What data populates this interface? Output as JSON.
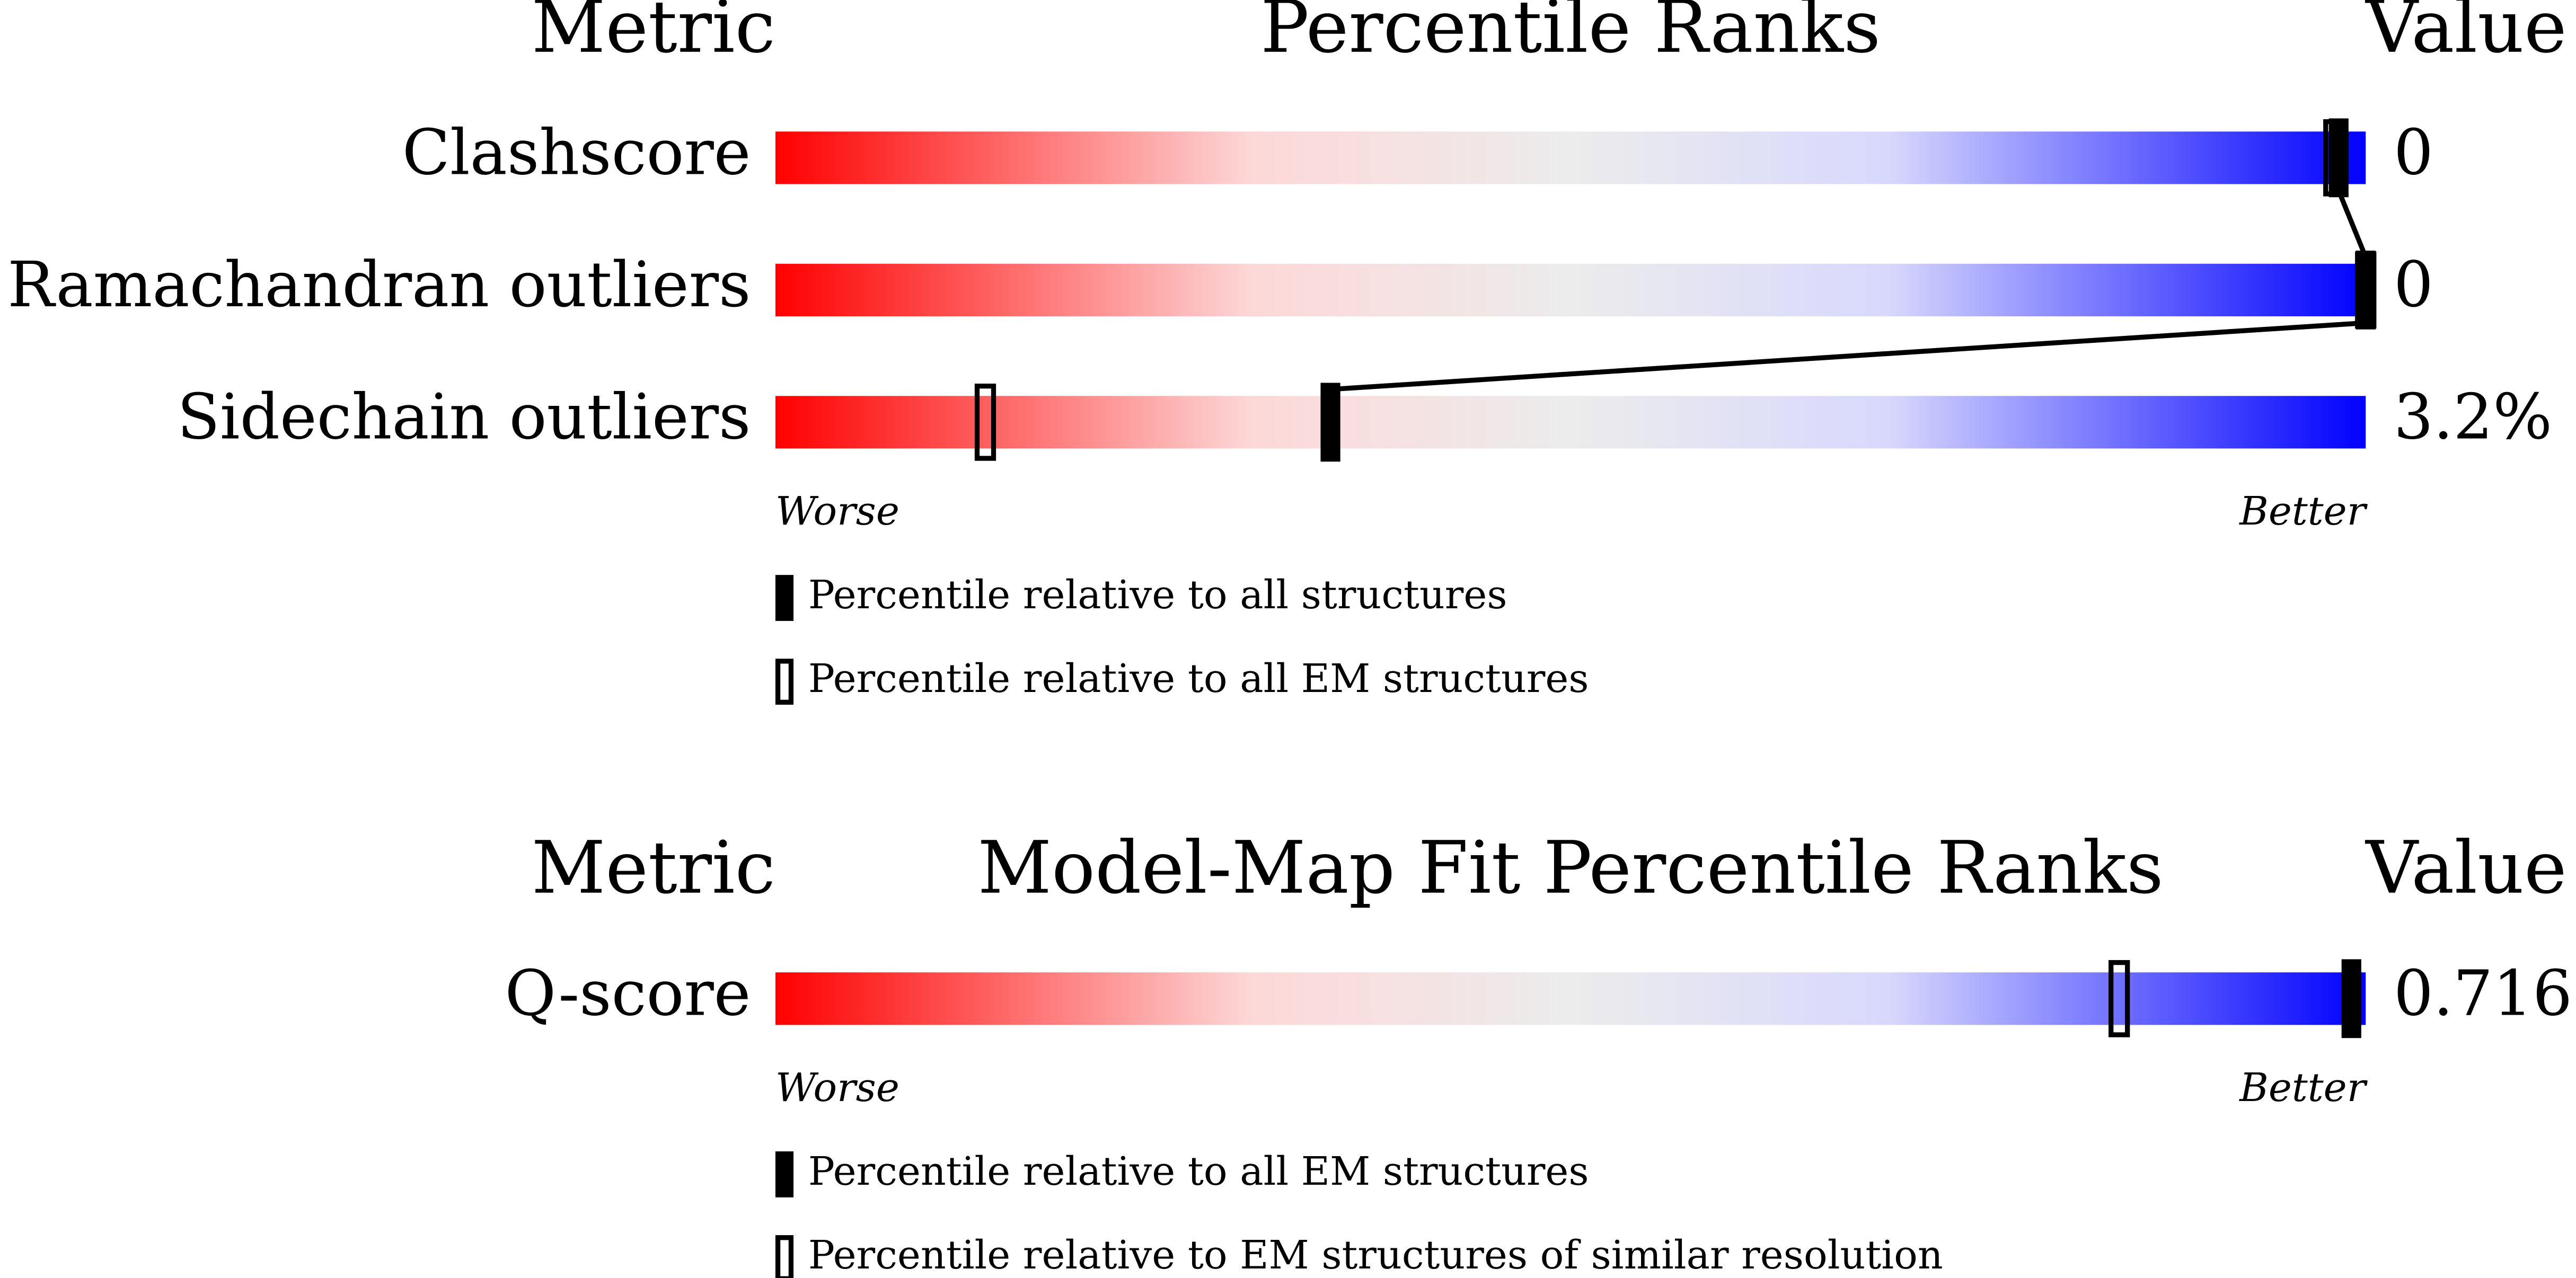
{
  "panels": [
    {
      "type": "slider",
      "title": "Percentile Ranks",
      "metric_header": "Metric",
      "value_header": "Value",
      "worse": "Worse",
      "better": "Better",
      "xlim": [
        0,
        100
      ],
      "legend": [
        "Percentile relative to all structures",
        "Percentile relative to all EM structures"
      ],
      "rows": [
        {
          "metric": "Clashscore",
          "value": 0,
          "value_label": "0",
          "percentiles": [
            98.3,
            98
          ]
        },
        {
          "metric": "Ramachandran outliers",
          "value": 0,
          "value_label": "0",
          "percentiles": [
            100,
            100
          ]
        },
        {
          "metric": "Sidechain outliers",
          "value": 3.2,
          "value_label": "3.2%",
          "percentiles": [
            34.9,
            13.2
          ]
        }
      ]
    },
    {
      "type": "slider",
      "title": "Model-Map Fit Percentile Ranks",
      "metric_header": "Metric",
      "value_header": "Value",
      "worse": "Worse",
      "better": "Better",
      "xlim": [
        0,
        100
      ],
      "legend": [
        "Percentile relative to all EM structures",
        "Percentile relative to EM structures of similar resolution"
      ],
      "rows": [
        {
          "metric": "Q-score",
          "value": 0.716,
          "value_label": "0.716",
          "percentiles": [
            99.1,
            84.5
          ]
        }
      ]
    }
  ]
}
